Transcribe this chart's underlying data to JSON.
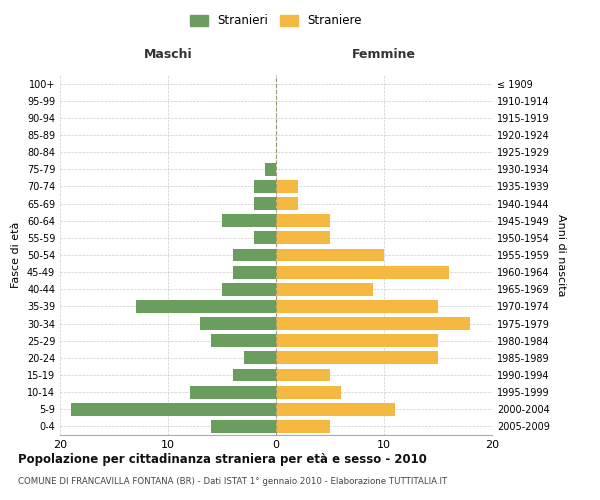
{
  "age_groups": [
    "0-4",
    "5-9",
    "10-14",
    "15-19",
    "20-24",
    "25-29",
    "30-34",
    "35-39",
    "40-44",
    "45-49",
    "50-54",
    "55-59",
    "60-64",
    "65-69",
    "70-74",
    "75-79",
    "80-84",
    "85-89",
    "90-94",
    "95-99",
    "100+"
  ],
  "birth_years": [
    "2005-2009",
    "2000-2004",
    "1995-1999",
    "1990-1994",
    "1985-1989",
    "1980-1984",
    "1975-1979",
    "1970-1974",
    "1965-1969",
    "1960-1964",
    "1955-1959",
    "1950-1954",
    "1945-1949",
    "1940-1944",
    "1935-1939",
    "1930-1934",
    "1925-1929",
    "1920-1924",
    "1915-1919",
    "1910-1914",
    "≤ 1909"
  ],
  "maschi": [
    6,
    19,
    8,
    4,
    3,
    6,
    7,
    13,
    5,
    4,
    4,
    2,
    5,
    2,
    2,
    1,
    0,
    0,
    0,
    0,
    0
  ],
  "femmine": [
    5,
    11,
    6,
    5,
    15,
    15,
    18,
    15,
    9,
    16,
    10,
    5,
    5,
    2,
    2,
    0,
    0,
    0,
    0,
    0,
    0
  ],
  "male_color": "#6a9e5f",
  "female_color": "#f5b942",
  "title": "Popolazione per cittadinanza straniera per età e sesso - 2010",
  "subtitle": "COMUNE DI FRANCAVILLA FONTANA (BR) - Dati ISTAT 1° gennaio 2010 - Elaborazione TUTTITALIA.IT",
  "ylabel_left": "Fasce di età",
  "ylabel_right": "Anni di nascita",
  "xlabel_left": "Maschi",
  "xlabel_right": "Femmine",
  "legend_male": "Stranieri",
  "legend_female": "Straniere",
  "xlim": 20,
  "background_color": "#ffffff",
  "grid_color": "#cccccc"
}
